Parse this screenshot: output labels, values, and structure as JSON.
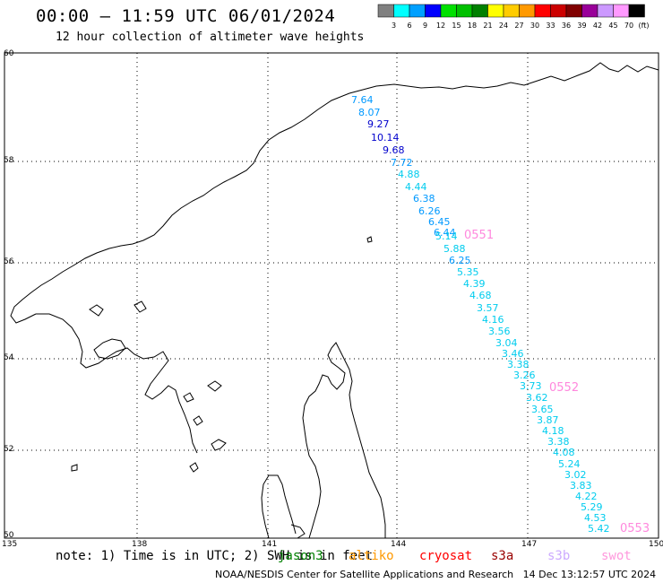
{
  "title": "00:00 – 11:59 UTC 06/01/2024",
  "subtitle": "12 hour collection of altimeter wave heights",
  "colorbar": {
    "labels": [
      "3",
      "6",
      "9",
      "12",
      "15",
      "18",
      "21",
      "24",
      "27",
      "30",
      "33",
      "36",
      "39",
      "42",
      "45",
      "70"
    ],
    "unit": "(ft)",
    "colors": [
      "#808080",
      "#00ffff",
      "#00a0ff",
      "#0000ff",
      "#00e000",
      "#00c000",
      "#008000",
      "#ffff00",
      "#ffcc00",
      "#ff9900",
      "#ff0000",
      "#cc0000",
      "#800000",
      "#990099",
      "#cc99ff",
      "#ff99ff",
      "#000000"
    ]
  },
  "axes": {
    "lat_labels": [
      "60",
      "58",
      "56",
      "54",
      "52",
      "50"
    ],
    "lon_labels": [
      "135",
      "138",
      "141",
      "144",
      "147",
      "150"
    ]
  },
  "wave_labels": [
    {
      "text": "7.64",
      "color": "#0099ff"
    },
    {
      "text": "8.07",
      "color": "#0099ff"
    },
    {
      "text": "9.27",
      "color": "#0000cc"
    },
    {
      "text": "10.14",
      "color": "#0000cc"
    },
    {
      "text": "9.68",
      "color": "#0000cc"
    },
    {
      "text": "7.72",
      "color": "#0099ff"
    },
    {
      "text": "4.88",
      "color": "#00ccee"
    },
    {
      "text": "4.44",
      "color": "#00ccee"
    },
    {
      "text": "6.38",
      "color": "#0099ff"
    },
    {
      "text": "6.26",
      "color": "#0099ff"
    },
    {
      "text": "6.45",
      "color": "#0099ff"
    },
    {
      "text": "6.44",
      "color": "#0099ff"
    },
    {
      "text": "5.14",
      "color": "#00ccee"
    },
    {
      "text": "5.88",
      "color": "#00ccee"
    },
    {
      "text": "6.25",
      "color": "#0099ff"
    },
    {
      "text": "5.35",
      "color": "#00ccee"
    },
    {
      "text": "4.39",
      "color": "#00ccee"
    },
    {
      "text": "4.68",
      "color": "#00ccee"
    },
    {
      "text": "3.57",
      "color": "#00ccee"
    },
    {
      "text": "4.16",
      "color": "#00ccee"
    },
    {
      "text": "3.56",
      "color": "#00ccee"
    },
    {
      "text": "3.04",
      "color": "#00ccee"
    },
    {
      "text": "3.46",
      "color": "#00ccee"
    },
    {
      "text": "3.38",
      "color": "#00ccee"
    },
    {
      "text": "3.26",
      "color": "#00ccee"
    },
    {
      "text": "3.73",
      "color": "#00ccee"
    },
    {
      "text": "3.62",
      "color": "#00ccee"
    },
    {
      "text": "3.65",
      "color": "#00ccee"
    },
    {
      "text": "3.87",
      "color": "#00ccee"
    },
    {
      "text": "4.18",
      "color": "#00ccee"
    },
    {
      "text": "3.38",
      "color": "#00ccee"
    },
    {
      "text": "4.08",
      "color": "#00ccee"
    },
    {
      "text": "5.24",
      "color": "#00ccee"
    },
    {
      "text": "3.02",
      "color": "#00ccee"
    },
    {
      "text": "3.83",
      "color": "#00ccee"
    },
    {
      "text": "4.22",
      "color": "#00ccee"
    },
    {
      "text": "5.29",
      "color": "#00ccee"
    },
    {
      "text": "4.53",
      "color": "#00ccee"
    },
    {
      "text": "5.42",
      "color": "#00ccee"
    }
  ],
  "time_labels": [
    {
      "text": "0551"
    },
    {
      "text": "0552"
    },
    {
      "text": "0553"
    }
  ],
  "time_color": "#ff88dd",
  "note": "note: 1) Time is in UTC; 2) SWH is in feet",
  "legend": [
    {
      "text": "jason3",
      "color": "#008000"
    },
    {
      "text": "altiko",
      "color": "#ff9900"
    },
    {
      "text": "cryosat",
      "color": "#ff0000"
    },
    {
      "text": "s3a",
      "color": "#990000"
    },
    {
      "text": "s3b",
      "color": "#ccaaff"
    },
    {
      "text": "swot",
      "color": "#ff99dd"
    }
  ],
  "credit": "NOAA/NESDIS Center for Satellite Applications and Research",
  "generated": "14 Dec 13:12:57 UTC 2024"
}
